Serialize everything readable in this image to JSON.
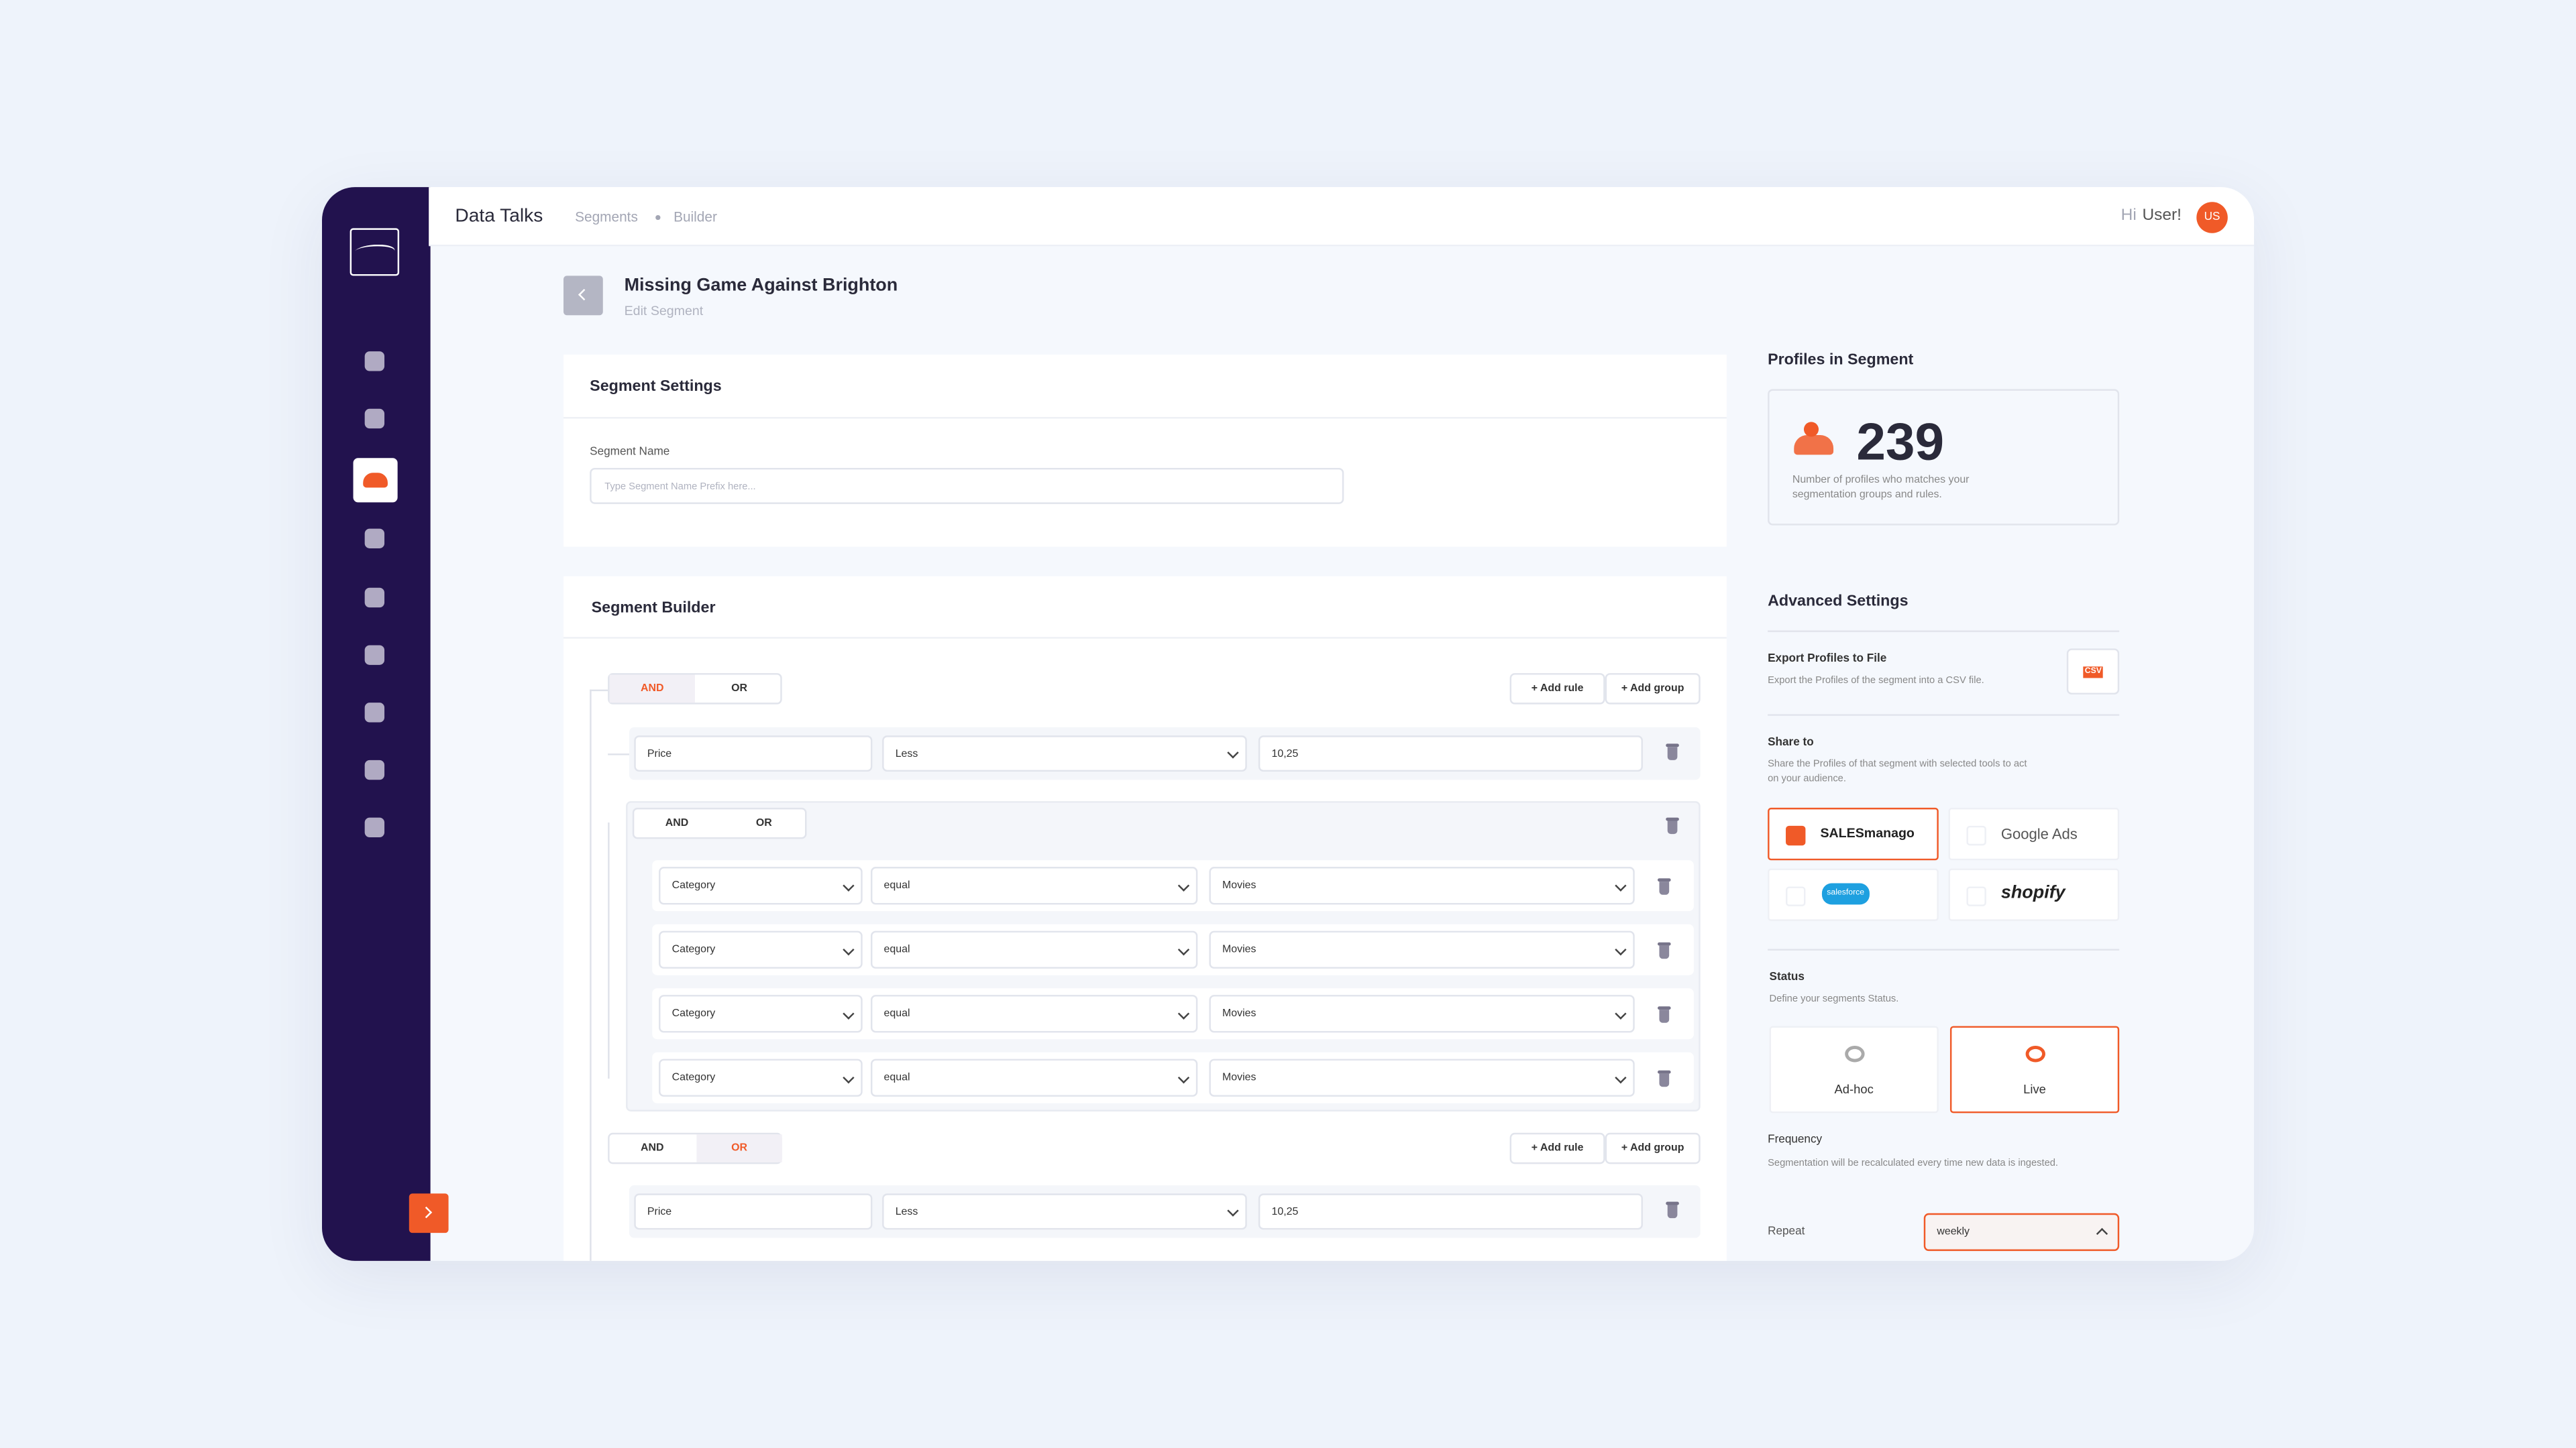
{
  "app": {
    "name": "Data Talks",
    "breadcrumb": [
      "Segments",
      "Builder"
    ],
    "greeting": "Hi",
    "user": "User!",
    "avatar": "US"
  },
  "header": {
    "title": "Missing Game Against Brighton",
    "subtitle": "Edit Segment"
  },
  "segment_settings": {
    "title": "Segment Settings",
    "name_label": "Segment Name",
    "name_placeholder": "Type Segment Name Prefix here..."
  },
  "builder": {
    "title": "Segment Builder",
    "groups": [
      {
        "toggle": [
          {
            "label": "AND",
            "selected": true
          },
          {
            "label": "OR",
            "selected": false
          }
        ],
        "buttons": [
          "+ Add rule",
          "+ Add group"
        ],
        "rule": [
          "Price",
          "Less",
          "10,25"
        ],
        "subgroup": {
          "toggle": [
            {
              "label": "AND",
              "selected": false
            },
            {
              "label": "OR",
              "selected": false
            }
          ],
          "rules": [
            [
              "Category",
              "equal",
              "Movies"
            ],
            [
              "Category",
              "equal",
              "Movies"
            ],
            [
              "Category",
              "equal",
              "Movies"
            ],
            [
              "Category",
              "equal",
              "Movies"
            ]
          ]
        }
      },
      {
        "toggle": [
          {
            "label": "AND",
            "selected": false
          },
          {
            "label": "OR",
            "selected": true
          }
        ],
        "buttons": [
          "+ Add rule",
          "+ Add group"
        ],
        "rule": [
          "Price",
          "Less",
          "10,25"
        ]
      }
    ]
  },
  "profiles": {
    "title": "Profiles in Segment",
    "count": "239",
    "description": "Number of profiles who matches your segmentation groups and rules."
  },
  "advanced": {
    "title": "Advanced Settings",
    "export": {
      "title": "Export Profiles to File",
      "description": "Export the Profiles of the segment into a CSV file.",
      "icon_label": "CSV"
    },
    "share": {
      "title": "Share to",
      "description": "Share the Profiles of that segment with selected tools to act on your audience.",
      "tools": [
        {
          "label": "SALESmanago",
          "checked": true
        },
        {
          "label": "Google Ads",
          "checked": false
        },
        {
          "label": "salesforce",
          "checked": false
        },
        {
          "label": "shopify",
          "checked": false
        }
      ]
    },
    "status": {
      "title": "Status",
      "description": "Define your segments Status.",
      "options": [
        {
          "label": "Ad-hoc",
          "selected": false
        },
        {
          "label": "Live",
          "selected": true
        }
      ]
    },
    "frequency": {
      "title": "Frequency",
      "description": "Segmentation will be recalculated every time new data is ingested.",
      "repeat_label": "Repeat",
      "repeat_value": "weekly"
    }
  }
}
